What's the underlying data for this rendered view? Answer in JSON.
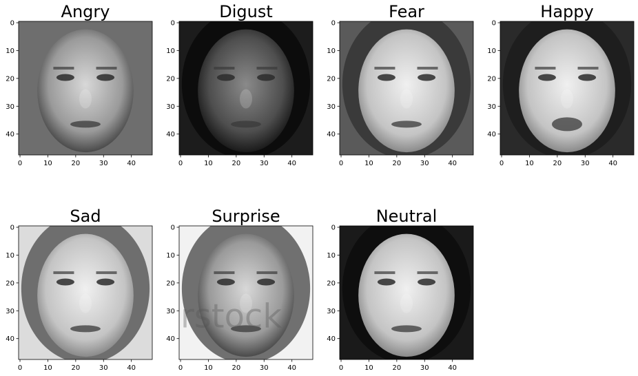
{
  "figure": {
    "panels": [
      {
        "title": "Angry",
        "xticks": [
          "0",
          "10",
          "20",
          "30",
          "40"
        ],
        "yticks": [
          "0",
          "10",
          "20",
          "30",
          "40"
        ],
        "image": "grayscale-face-angry-older-man-frowning"
      },
      {
        "title": "Digust",
        "xticks": [
          "0",
          "10",
          "20",
          "30",
          "40"
        ],
        "yticks": [
          "0",
          "10",
          "20",
          "30",
          "40"
        ],
        "image": "grayscale-face-disgust-man-squinting"
      },
      {
        "title": "Fear",
        "xticks": [
          "0",
          "10",
          "20",
          "30",
          "40"
        ],
        "yticks": [
          "0",
          "10",
          "20",
          "30",
          "40"
        ],
        "image": "grayscale-face-fear-woman-with-headset"
      },
      {
        "title": "Happy",
        "xticks": [
          "0",
          "10",
          "20",
          "30",
          "40"
        ],
        "yticks": [
          "0",
          "10",
          "20",
          "30",
          "40"
        ],
        "image": "grayscale-face-happy-woman-with-glasses-smiling"
      },
      {
        "title": "Sad",
        "xticks": [
          "0",
          "10",
          "20",
          "30",
          "40"
        ],
        "yticks": [
          "0",
          "10",
          "20",
          "30",
          "40"
        ],
        "image": "grayscale-face-sad-child-head-tilted"
      },
      {
        "title": "Surprise",
        "xticks": [
          "0",
          "10",
          "20",
          "30",
          "40"
        ],
        "yticks": [
          "0",
          "10",
          "20",
          "30",
          "40"
        ],
        "image": "grayscale-face-surprise-woman-hands-over-mouth",
        "watermark": "rstock"
      },
      {
        "title": "Neutral",
        "xticks": [
          "0",
          "10",
          "20",
          "30",
          "40"
        ],
        "yticks": [
          "0",
          "10",
          "20",
          "30",
          "40"
        ],
        "image": "grayscale-face-neutral-woman-dark-hair"
      }
    ]
  }
}
